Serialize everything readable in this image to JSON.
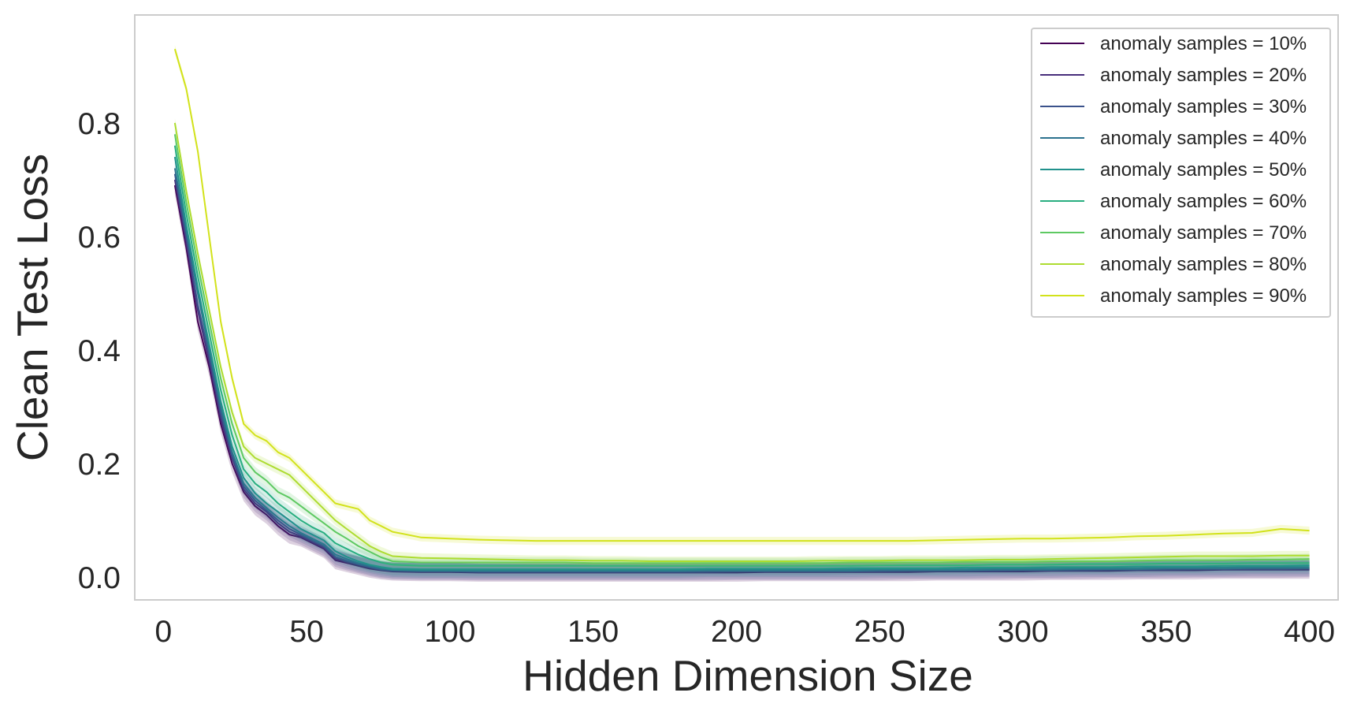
{
  "chart_data": {
    "type": "line",
    "xlabel": "Hidden Dimension Size",
    "ylabel": "Clean Test Loss",
    "xlim": [
      -10,
      410
    ],
    "ylim": [
      -0.04,
      0.99
    ],
    "xticks": [
      0,
      50,
      100,
      150,
      200,
      250,
      300,
      350,
      400
    ],
    "yticks": [
      0.0,
      0.2,
      0.4,
      0.6,
      0.8
    ],
    "ytick_labels": [
      "0.0",
      "0.2",
      "0.4",
      "0.6",
      "0.8"
    ],
    "grid": false,
    "legend_placement": "top-right",
    "x": [
      4,
      8,
      12,
      16,
      20,
      24,
      28,
      32,
      36,
      40,
      44,
      48,
      52,
      56,
      60,
      64,
      68,
      72,
      76,
      80,
      90,
      100,
      110,
      120,
      130,
      140,
      150,
      160,
      170,
      180,
      190,
      200,
      210,
      220,
      230,
      240,
      250,
      260,
      270,
      280,
      290,
      300,
      310,
      320,
      330,
      340,
      350,
      360,
      370,
      380,
      390,
      400
    ],
    "series": [
      {
        "name": "anomaly samples = 10%",
        "color": "#440154",
        "values": [
          0.69,
          0.58,
          0.45,
          0.37,
          0.27,
          0.2,
          0.15,
          0.125,
          0.11,
          0.09,
          0.075,
          0.07,
          0.06,
          0.05,
          0.03,
          0.025,
          0.02,
          0.015,
          0.012,
          0.01,
          0.009,
          0.009,
          0.008,
          0.008,
          0.008,
          0.008,
          0.008,
          0.008,
          0.008,
          0.008,
          0.008,
          0.008,
          0.009,
          0.009,
          0.009,
          0.009,
          0.009,
          0.009,
          0.01,
          0.01,
          0.01,
          0.01,
          0.011,
          0.011,
          0.011,
          0.012,
          0.012,
          0.012,
          0.013,
          0.013,
          0.013,
          0.013
        ]
      },
      {
        "name": "anomaly samples = 20%",
        "color": "#472d7b",
        "values": [
          0.7,
          0.59,
          0.47,
          0.38,
          0.28,
          0.21,
          0.155,
          0.13,
          0.115,
          0.095,
          0.08,
          0.072,
          0.062,
          0.052,
          0.033,
          0.027,
          0.022,
          0.017,
          0.013,
          0.011,
          0.01,
          0.01,
          0.009,
          0.009,
          0.009,
          0.009,
          0.009,
          0.009,
          0.009,
          0.009,
          0.009,
          0.01,
          0.01,
          0.01,
          0.01,
          0.01,
          0.01,
          0.011,
          0.011,
          0.011,
          0.011,
          0.012,
          0.012,
          0.012,
          0.013,
          0.013,
          0.013,
          0.014,
          0.014,
          0.014,
          0.014,
          0.015
        ]
      },
      {
        "name": "anomaly samples = 30%",
        "color": "#3b528b",
        "values": [
          0.71,
          0.6,
          0.48,
          0.39,
          0.29,
          0.215,
          0.16,
          0.135,
          0.118,
          0.1,
          0.085,
          0.075,
          0.065,
          0.055,
          0.036,
          0.029,
          0.023,
          0.018,
          0.014,
          0.012,
          0.011,
          0.011,
          0.01,
          0.01,
          0.01,
          0.01,
          0.01,
          0.01,
          0.01,
          0.01,
          0.011,
          0.011,
          0.011,
          0.011,
          0.011,
          0.011,
          0.012,
          0.012,
          0.012,
          0.012,
          0.013,
          0.013,
          0.013,
          0.014,
          0.014,
          0.014,
          0.015,
          0.015,
          0.015,
          0.016,
          0.016,
          0.016
        ]
      },
      {
        "name": "anomaly samples = 40%",
        "color": "#2c728e",
        "values": [
          0.72,
          0.61,
          0.5,
          0.4,
          0.3,
          0.22,
          0.165,
          0.14,
          0.122,
          0.105,
          0.09,
          0.078,
          0.068,
          0.058,
          0.04,
          0.032,
          0.025,
          0.02,
          0.016,
          0.013,
          0.012,
          0.012,
          0.012,
          0.012,
          0.012,
          0.012,
          0.012,
          0.012,
          0.012,
          0.012,
          0.013,
          0.013,
          0.013,
          0.013,
          0.013,
          0.013,
          0.014,
          0.014,
          0.014,
          0.014,
          0.015,
          0.015,
          0.015,
          0.016,
          0.016,
          0.016,
          0.017,
          0.017,
          0.017,
          0.018,
          0.018,
          0.018
        ]
      },
      {
        "name": "anomaly samples = 50%",
        "color": "#21918c",
        "values": [
          0.74,
          0.62,
          0.51,
          0.41,
          0.31,
          0.23,
          0.175,
          0.148,
          0.13,
          0.115,
          0.1,
          0.085,
          0.075,
          0.065,
          0.046,
          0.036,
          0.028,
          0.022,
          0.018,
          0.015,
          0.014,
          0.014,
          0.014,
          0.014,
          0.014,
          0.014,
          0.014,
          0.014,
          0.014,
          0.014,
          0.015,
          0.015,
          0.015,
          0.015,
          0.015,
          0.016,
          0.016,
          0.016,
          0.016,
          0.017,
          0.017,
          0.017,
          0.018,
          0.018,
          0.018,
          0.019,
          0.019,
          0.019,
          0.02,
          0.02,
          0.02,
          0.021
        ]
      },
      {
        "name": "anomaly samples = 60%",
        "color": "#28ae80",
        "values": [
          0.76,
          0.64,
          0.53,
          0.43,
          0.33,
          0.25,
          0.19,
          0.165,
          0.15,
          0.13,
          0.115,
          0.1,
          0.088,
          0.078,
          0.06,
          0.05,
          0.04,
          0.032,
          0.026,
          0.022,
          0.02,
          0.02,
          0.02,
          0.02,
          0.02,
          0.02,
          0.02,
          0.02,
          0.02,
          0.02,
          0.02,
          0.02,
          0.02,
          0.02,
          0.02,
          0.02,
          0.021,
          0.021,
          0.021,
          0.021,
          0.022,
          0.022,
          0.022,
          0.023,
          0.023,
          0.023,
          0.024,
          0.024,
          0.024,
          0.025,
          0.025,
          0.025
        ]
      },
      {
        "name": "anomaly samples = 70%",
        "color": "#5ec962",
        "values": [
          0.78,
          0.66,
          0.55,
          0.45,
          0.35,
          0.27,
          0.21,
          0.185,
          0.17,
          0.15,
          0.14,
          0.125,
          0.11,
          0.095,
          0.08,
          0.068,
          0.055,
          0.045,
          0.035,
          0.028,
          0.026,
          0.026,
          0.026,
          0.026,
          0.026,
          0.026,
          0.025,
          0.025,
          0.025,
          0.025,
          0.025,
          0.025,
          0.025,
          0.025,
          0.025,
          0.026,
          0.026,
          0.026,
          0.026,
          0.027,
          0.027,
          0.027,
          0.028,
          0.028,
          0.028,
          0.029,
          0.03,
          0.03,
          0.03,
          0.031,
          0.031,
          0.032
        ]
      },
      {
        "name": "anomaly samples = 80%",
        "color": "#addc30",
        "values": [
          0.8,
          0.68,
          0.57,
          0.47,
          0.37,
          0.29,
          0.23,
          0.21,
          0.2,
          0.19,
          0.18,
          0.16,
          0.14,
          0.12,
          0.1,
          0.085,
          0.07,
          0.055,
          0.045,
          0.037,
          0.034,
          0.033,
          0.032,
          0.031,
          0.03,
          0.03,
          0.029,
          0.029,
          0.028,
          0.028,
          0.028,
          0.028,
          0.028,
          0.028,
          0.029,
          0.029,
          0.029,
          0.03,
          0.03,
          0.03,
          0.031,
          0.031,
          0.032,
          0.033,
          0.034,
          0.035,
          0.036,
          0.037,
          0.037,
          0.037,
          0.038,
          0.038
        ]
      },
      {
        "name": "anomaly samples = 90%",
        "color": "#d2e21b",
        "values": [
          0.93,
          0.86,
          0.75,
          0.6,
          0.45,
          0.35,
          0.27,
          0.25,
          0.24,
          0.22,
          0.21,
          0.19,
          0.17,
          0.15,
          0.13,
          0.125,
          0.12,
          0.1,
          0.09,
          0.08,
          0.07,
          0.068,
          0.066,
          0.065,
          0.064,
          0.064,
          0.064,
          0.064,
          0.064,
          0.064,
          0.064,
          0.064,
          0.064,
          0.064,
          0.064,
          0.064,
          0.064,
          0.064,
          0.065,
          0.066,
          0.067,
          0.068,
          0.068,
          0.069,
          0.07,
          0.072,
          0.073,
          0.075,
          0.077,
          0.078,
          0.085,
          0.082
        ]
      }
    ]
  }
}
